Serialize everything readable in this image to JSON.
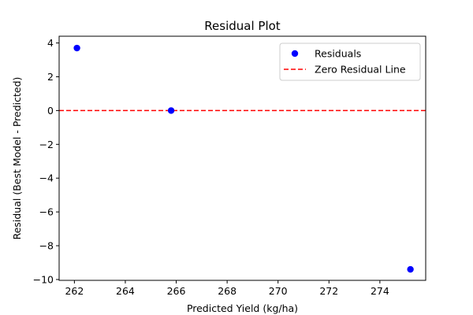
{
  "chart_data": {
    "type": "scatter",
    "title": "Residual Plot",
    "xlabel": "Predicted Yield (kg/ha)",
    "ylabel": "Residual (Best Model - Predicted)",
    "xlim": [
      261.4,
      275.8
    ],
    "ylim": [
      -10.05,
      4.4
    ],
    "x_ticks": [
      262,
      264,
      266,
      268,
      270,
      272,
      274
    ],
    "x_tick_labels": [
      "262",
      "264",
      "266",
      "268",
      "270",
      "272",
      "274"
    ],
    "y_ticks": [
      4,
      2,
      0,
      -2,
      -4,
      -6,
      -8,
      -10
    ],
    "y_tick_labels": [
      "4",
      "2",
      "0",
      "−2",
      "−4",
      "−6",
      "−8",
      "−10"
    ],
    "grid": false,
    "legend_position": "top-right",
    "series": [
      {
        "name": "Residuals",
        "kind": "scatter",
        "color": "#0000ff",
        "x": [
          262.1,
          265.8,
          275.2
        ],
        "y": [
          3.7,
          0.0,
          -9.4
        ]
      },
      {
        "name": "Zero Residual Line",
        "kind": "hline",
        "color": "#ff0000",
        "style": "dashed",
        "y": 0
      }
    ]
  }
}
